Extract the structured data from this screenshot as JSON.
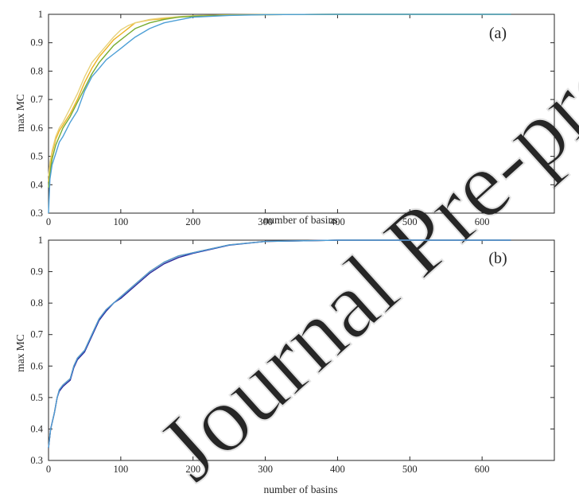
{
  "chart_data": [
    {
      "type": "line",
      "panel_label": "(a)",
      "xlabel": "number of basins",
      "ylabel": "max MC",
      "xlim": [
        0,
        700
      ],
      "ylim": [
        0.3,
        1
      ],
      "xticks": [
        "0",
        "100",
        "200",
        "300",
        "400",
        "500",
        "600"
      ],
      "yticks": [
        "0.3",
        "0.4",
        "0.5",
        "0.6",
        "0.7",
        "0.8",
        "0.9",
        "1"
      ],
      "grid": false,
      "series": [
        {
          "color": "#edb120",
          "x": [
            0,
            2,
            5,
            10,
            15,
            20,
            30,
            40,
            50,
            60,
            70,
            80,
            90,
            100,
            110,
            120,
            140,
            160,
            180,
            200,
            250,
            300,
            400,
            640
          ],
          "y": [
            0.41,
            0.46,
            0.51,
            0.56,
            0.59,
            0.61,
            0.65,
            0.7,
            0.76,
            0.81,
            0.85,
            0.88,
            0.91,
            0.93,
            0.95,
            0.97,
            0.98,
            0.985,
            0.99,
            0.994,
            0.998,
            0.999,
            1.0,
            1.0
          ]
        },
        {
          "color": "#e7d27a",
          "x": [
            0,
            2,
            5,
            10,
            15,
            20,
            30,
            40,
            50,
            60,
            70,
            80,
            90,
            100,
            110,
            120,
            140,
            160,
            180,
            200,
            250,
            300,
            400,
            640
          ],
          "y": [
            0.43,
            0.48,
            0.52,
            0.57,
            0.6,
            0.62,
            0.67,
            0.72,
            0.78,
            0.83,
            0.86,
            0.89,
            0.92,
            0.945,
            0.96,
            0.97,
            0.982,
            0.988,
            0.992,
            0.995,
            0.998,
            0.999,
            1.0,
            1.0
          ]
        },
        {
          "color": "#77ac30",
          "x": [
            0,
            2,
            5,
            10,
            15,
            20,
            30,
            40,
            50,
            60,
            70,
            80,
            90,
            100,
            110,
            120,
            140,
            160,
            180,
            200,
            250,
            300,
            400,
            640
          ],
          "y": [
            0.39,
            0.44,
            0.49,
            0.54,
            0.57,
            0.6,
            0.64,
            0.69,
            0.74,
            0.79,
            0.83,
            0.86,
            0.89,
            0.91,
            0.93,
            0.95,
            0.97,
            0.982,
            0.99,
            0.993,
            0.997,
            0.999,
            1.0,
            1.0
          ]
        },
        {
          "color": "#4d9fd6",
          "x": [
            0,
            2,
            5,
            10,
            15,
            20,
            30,
            40,
            50,
            60,
            70,
            80,
            90,
            100,
            110,
            120,
            140,
            160,
            180,
            200,
            250,
            300,
            400,
            640
          ],
          "y": [
            0.3,
            0.42,
            0.47,
            0.51,
            0.55,
            0.57,
            0.62,
            0.66,
            0.73,
            0.78,
            0.81,
            0.84,
            0.86,
            0.88,
            0.9,
            0.92,
            0.95,
            0.97,
            0.98,
            0.99,
            0.996,
            0.999,
            1.0,
            1.0
          ]
        }
      ]
    },
    {
      "type": "line",
      "panel_label": "(b)",
      "xlabel": "number of basins",
      "ylabel": "max MC",
      "xlim": [
        0,
        700
      ],
      "ylim": [
        0.3,
        1
      ],
      "xticks": [
        "0",
        "100",
        "200",
        "300",
        "400",
        "500",
        "600"
      ],
      "yticks": [
        "0.3",
        "0.4",
        "0.5",
        "0.6",
        "0.7",
        "0.8",
        "0.9",
        "1"
      ],
      "grid": false,
      "series": [
        {
          "color": "#d95319",
          "x": [
            0,
            3,
            8,
            12,
            15,
            20,
            25,
            30,
            35,
            40,
            50,
            60,
            70,
            80,
            90,
            100,
            120,
            140,
            160,
            180,
            200,
            250,
            300,
            400,
            640
          ],
          "y": [
            0.34,
            0.4,
            0.45,
            0.5,
            0.525,
            0.54,
            0.55,
            0.56,
            0.6,
            0.625,
            0.65,
            0.7,
            0.75,
            0.78,
            0.8,
            0.82,
            0.86,
            0.9,
            0.93,
            0.95,
            0.96,
            0.985,
            0.996,
            1.0,
            1.0
          ]
        },
        {
          "color": "#2c2c9c",
          "x": [
            0,
            3,
            8,
            12,
            15,
            20,
            25,
            30,
            35,
            40,
            50,
            60,
            70,
            80,
            90,
            100,
            120,
            140,
            160,
            180,
            200,
            250,
            300,
            400,
            640
          ],
          "y": [
            0.34,
            0.4,
            0.45,
            0.5,
            0.52,
            0.535,
            0.545,
            0.555,
            0.595,
            0.62,
            0.645,
            0.695,
            0.745,
            0.775,
            0.8,
            0.815,
            0.855,
            0.895,
            0.925,
            0.945,
            0.958,
            0.984,
            0.996,
            1.0,
            1.0
          ]
        },
        {
          "color": "#4d9fd6",
          "x": [
            0,
            3,
            8,
            12,
            15,
            20,
            25,
            30,
            35,
            40,
            50,
            60,
            70,
            80,
            90,
            100,
            120,
            140,
            160,
            180,
            200,
            250,
            300,
            400,
            640
          ],
          "y": [
            0.34,
            0.4,
            0.45,
            0.5,
            0.525,
            0.54,
            0.55,
            0.56,
            0.6,
            0.625,
            0.65,
            0.7,
            0.75,
            0.78,
            0.8,
            0.82,
            0.86,
            0.9,
            0.93,
            0.95,
            0.96,
            0.985,
            0.996,
            1.0,
            1.0
          ]
        }
      ]
    }
  ]
}
